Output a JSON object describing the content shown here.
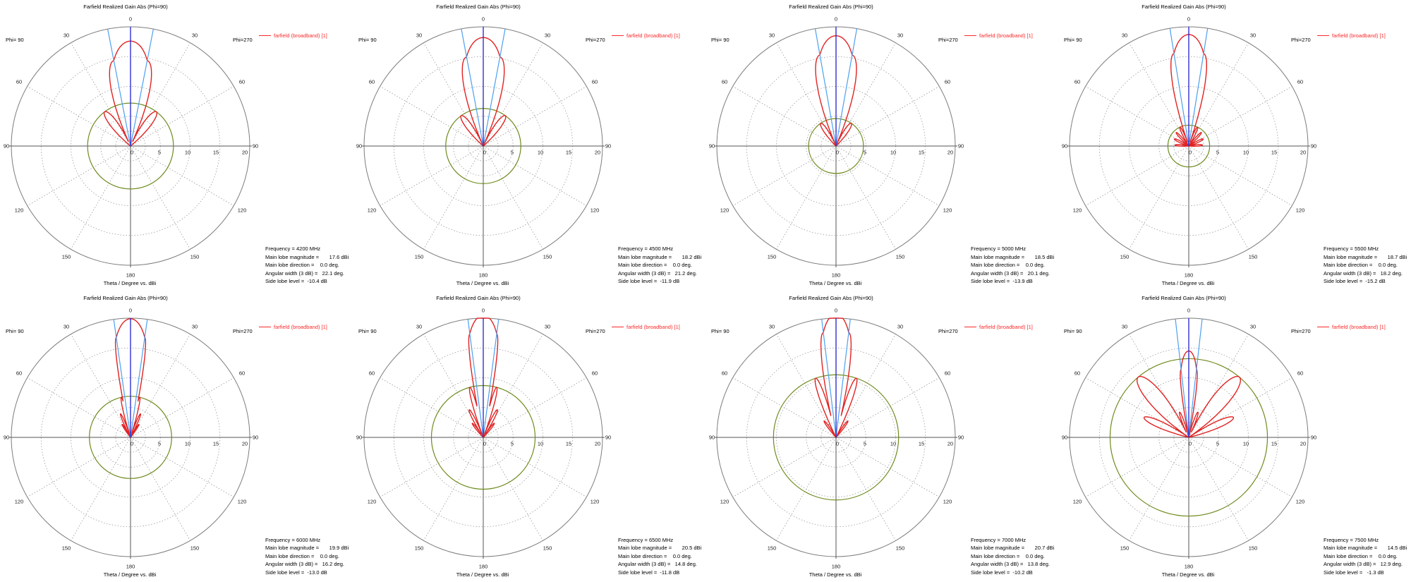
{
  "chart_data": {
    "type": "line",
    "polar": {
      "phi_left": "Phi= 90",
      "phi_right": "Phi=270",
      "axis_label": "Theta / Degree vs. dBi",
      "angle_labels": [
        "0",
        "30",
        "30",
        "60",
        "60",
        "90",
        "90",
        "120",
        "120",
        "150",
        "150",
        "180"
      ],
      "radial_ticks": [
        "0",
        "5",
        "10",
        "15",
        "20"
      ],
      "radial_range": [
        0,
        20
      ],
      "grid_circles_db": [
        2.5,
        5,
        10,
        15,
        20
      ],
      "spoke_step_deg": 30,
      "colors": {
        "curve": "#e22222",
        "legend_text": "#fa2a2a",
        "main_lobe_line": "#2020cf",
        "angular_width_line": "#4da0f0",
        "side_lobe_circle": "#6e8b1e",
        "grid": "#7d7d7d",
        "grid_dotted": "#9b9b9b",
        "axis": "#555555"
      }
    },
    "layout": {
      "rows": 2,
      "cols": 4,
      "legend_position": "top-right",
      "grid": "dotted"
    },
    "plots": [
      {
        "title": "Farfield Realized Gain Abs (Phi=90)",
        "legend": "farfield (broadband) [1]",
        "frequency_mhz": 4200,
        "main_lobe_magnitude_dbi": 17.6,
        "main_lobe_direction_deg": 0.0,
        "angular_width_3db_deg": 22.1,
        "side_lobe_level_db": -10.4,
        "main_null_deg": 25,
        "sidelobes": [
          {
            "angle_deg": 37,
            "peak_db": 7.2,
            "null_halfwidth_deg": 13
          }
        ],
        "stats_lines": [
          "Frequency = 4200 MHz",
          "Main lobe magnitude =       17.6 dBi",
          "Main lobe direction =    0.0 deg.",
          "Angular width (3 dB) =   22.1 deg.",
          "Side lobe level =  -10.4 dB"
        ]
      },
      {
        "title": "Farfield Realized Gain Abs (Phi=90)",
        "legend": "farfield (broadband) [1]",
        "frequency_mhz": 4500,
        "main_lobe_magnitude_dbi": 18.2,
        "main_lobe_direction_deg": 0.0,
        "angular_width_3db_deg": 21.2,
        "side_lobe_level_db": -11.9,
        "main_null_deg": 24,
        "sidelobes": [
          {
            "angle_deg": 36,
            "peak_db": 6.3,
            "null_halfwidth_deg": 12
          }
        ],
        "stats_lines": [
          "Frequency = 4500 MHz",
          "Main lobe magnitude =       18.2 dBi",
          "Main lobe direction =    0.0 deg.",
          "Angular width (3 dB) =   21.2 deg.",
          "Side lobe level =  -11.9 dB"
        ]
      },
      {
        "title": "Farfield Realized Gain Abs (Phi=90)",
        "legend": "farfield (broadband) [1]",
        "frequency_mhz": 5000,
        "main_lobe_magnitude_dbi": 18.5,
        "main_lobe_direction_deg": 0.0,
        "angular_width_3db_deg": 20.1,
        "side_lobe_level_db": -13.9,
        "main_null_deg": 23,
        "sidelobes": [
          {
            "angle_deg": 34,
            "peak_db": 4.6,
            "null_halfwidth_deg": 11
          }
        ],
        "stats_lines": [
          "Frequency = 5000 MHz",
          "Main lobe magnitude =       18.5 dBi",
          "Main lobe direction =    0.0 deg.",
          "Angular width (3 dB) =   20.1 deg.",
          "Side lobe level =  -13.9 dB"
        ]
      },
      {
        "title": "Farfield Realized Gain Abs (Phi=90)",
        "legend": "farfield (broadband) [1]",
        "frequency_mhz": 5500,
        "main_lobe_magnitude_dbi": 18.7,
        "main_lobe_direction_deg": 0.0,
        "angular_width_3db_deg": 18.2,
        "side_lobe_level_db": -15.2,
        "main_null_deg": 19,
        "sidelobes": [
          {
            "angle_deg": 25,
            "peak_db": 3.5,
            "null_halfwidth_deg": 7
          },
          {
            "angle_deg": 43,
            "peak_db": 3.1,
            "null_halfwidth_deg": 7
          },
          {
            "angle_deg": 64,
            "peak_db": 2.7,
            "null_halfwidth_deg": 8
          },
          {
            "angle_deg": 86,
            "peak_db": 2.3,
            "null_halfwidth_deg": 8
          }
        ],
        "stats_lines": [
          "Frequency = 5500 MHz",
          "Main lobe magnitude =       18.7 dBi",
          "Main lobe direction =    0.0 deg.",
          "Angular width (3 dB) =   18.2 deg.",
          "Side lobe level =  -15.2 dB"
        ]
      },
      {
        "title": "Farfield Realized Gain Abs (Phi=90)",
        "legend": "farfield (broadband) [1]",
        "frequency_mhz": 6000,
        "main_lobe_magnitude_dbi": 19.9,
        "main_lobe_direction_deg": 0.0,
        "angular_width_3db_deg": 16.2,
        "side_lobe_level_db": -13.0,
        "main_null_deg": 12.5,
        "sidelobes": [
          {
            "angle_deg": 13,
            "peak_db": 6.9,
            "null_halfwidth_deg": 4.5
          },
          {
            "angle_deg": 23,
            "peak_db": 4.3,
            "null_halfwidth_deg": 5
          },
          {
            "angle_deg": 33,
            "peak_db": 2.6,
            "null_halfwidth_deg": 5
          }
        ],
        "stats_lines": [
          "Frequency = 6000 MHz",
          "Main lobe magnitude =       19.9 dBi",
          "Main lobe direction =    0.0 deg.",
          "Angular width (3 dB) =   16.2 deg.",
          "Side lobe level =  -13.0 dB"
        ]
      },
      {
        "title": "Farfield Realized Gain Abs (Phi=90)",
        "legend": "farfield (broadband) [1]",
        "frequency_mhz": 6500,
        "main_lobe_magnitude_dbi": 20.5,
        "main_lobe_direction_deg": 0.0,
        "angular_width_3db_deg": 14.8,
        "side_lobe_level_db": -11.8,
        "main_null_deg": 12,
        "sidelobes": [
          {
            "angle_deg": 15,
            "peak_db": 8.7,
            "null_halfwidth_deg": 5.5
          },
          {
            "angle_deg": 27,
            "peak_db": 5.2,
            "null_halfwidth_deg": 6
          },
          {
            "angle_deg": 38,
            "peak_db": 3.0,
            "null_halfwidth_deg": 6
          }
        ],
        "stats_lines": [
          "Frequency = 6500 MHz",
          "Main lobe magnitude =       20.5 dBi",
          "Main lobe direction =    0.0 deg.",
          "Angular width (3 dB) =   14.8 deg.",
          "Side lobe level =  -11.8 dB"
        ]
      },
      {
        "title": "Farfield Realized Gain Abs (Phi=90)",
        "legend": "farfield (broadband) [1]",
        "frequency_mhz": 7000,
        "main_lobe_magnitude_dbi": 20.7,
        "main_lobe_direction_deg": 0.0,
        "angular_width_3db_deg": 13.8,
        "side_lobe_level_db": -10.2,
        "main_null_deg": 14,
        "sidelobes": [
          {
            "angle_deg": 19,
            "peak_db": 10.5,
            "null_halfwidth_deg": 7
          },
          {
            "angle_deg": 36,
            "peak_db": 3.4,
            "null_halfwidth_deg": 6
          }
        ],
        "stats_lines": [
          "Frequency = 7000 MHz",
          "Main lobe magnitude =       20.7 dBi",
          "Main lobe direction =    0.0 deg.",
          "Angular width (3 dB) =   13.8 deg.",
          "Side lobe level =  -10.2 dB"
        ]
      },
      {
        "title": "Farfield Realized Gain Abs (Phi=90)",
        "legend": "farfield (broadband) [1]",
        "frequency_mhz": 7500,
        "main_lobe_magnitude_dbi": 14.5,
        "main_lobe_direction_deg": 0.0,
        "angular_width_3db_deg": 12.9,
        "side_lobe_level_db": -1.3,
        "main_null_deg": 11,
        "sidelobes": [
          {
            "angle_deg": 20,
            "peak_db": 4.5,
            "null_halfwidth_deg": 6
          },
          {
            "angle_deg": 40,
            "peak_db": 13.2,
            "null_halfwidth_deg": 15
          },
          {
            "angle_deg": 66,
            "peak_db": 8.2,
            "null_halfwidth_deg": 10
          }
        ],
        "stats_lines": [
          "Frequency = 7500 MHz",
          "Main lobe magnitude =       14.5 dBi",
          "Main lobe direction =    0.0 deg.",
          "Angular width (3 dB) =   12.9 deg.",
          "Side lobe level =   -1.3 dB"
        ]
      }
    ]
  }
}
